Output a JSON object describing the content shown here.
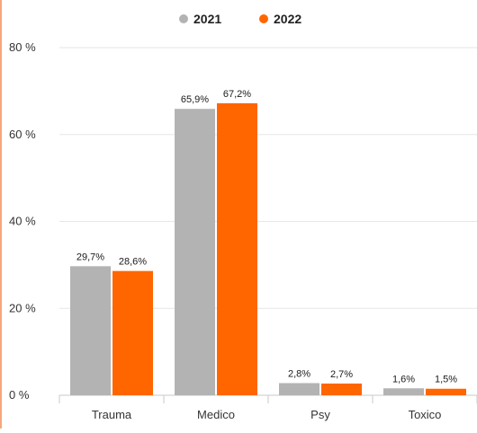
{
  "colors": {
    "series_2021": "#b3b3b3",
    "series_2022": "#ff6600",
    "grid": "#e6e6e6",
    "axis": "#c8c8c8",
    "text": "#333333",
    "accent_border": "#f5a77a"
  },
  "chart_data": {
    "type": "bar",
    "categories": [
      "Trauma",
      "Medico",
      "Psy",
      "Toxico"
    ],
    "series": [
      {
        "name": "2021",
        "values": [
          29.7,
          65.9,
          2.8,
          1.6
        ],
        "labels": [
          "29,7%",
          "65,9%",
          "2,8%",
          "1,6%"
        ]
      },
      {
        "name": "2022",
        "values": [
          28.6,
          67.2,
          2.7,
          1.5
        ],
        "labels": [
          "28,6%",
          "67,2%",
          "2,7%",
          "1,5%"
        ]
      }
    ],
    "ylim": [
      0,
      80
    ],
    "yticks": [
      0,
      20,
      40,
      60,
      80
    ],
    "ytick_labels": [
      "0 %",
      "20 %",
      "40 %",
      "60 %",
      "80 %"
    ],
    "grid": true,
    "legend": "top-center"
  }
}
